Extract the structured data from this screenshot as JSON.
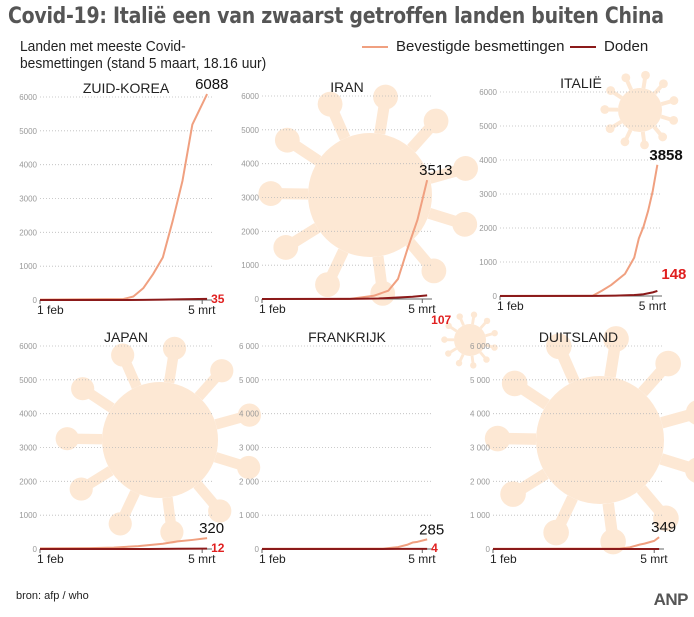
{
  "title": "Covid-19: Italië een van zwaarst getroffen landen buiten China",
  "subtitle_line1": "Landen met meeste Covid-",
  "subtitle_line2": "besmettingen (stand 5 maart, 18.16 uur)",
  "legend": [
    {
      "label": "Bevestigde besmettingen",
      "color": "#f0a080"
    },
    {
      "label": "Doden",
      "color": "#8b1a1a"
    }
  ],
  "source": "bron:  afp / who",
  "logo": "ANP",
  "colors": {
    "confirmed": "#f0a080",
    "deaths": "#8b1a1a",
    "death_label": "#e02020",
    "virus": "#fde8d4"
  },
  "chart_data": [
    {
      "type": "line",
      "title": "ZUID-KOREA",
      "ylim": [
        0,
        6000
      ],
      "yticks": [
        "0",
        "1000",
        "2000",
        "3000",
        "4000",
        "5000",
        "6000"
      ],
      "xticks": [
        {
          "day": 0,
          "label": "1 feb"
        },
        {
          "day": 33,
          "label": "5 mrt"
        }
      ],
      "confirmed_label": "6088",
      "deaths_label": "35",
      "confirmed": [
        [
          0,
          11
        ],
        [
          17,
          30
        ],
        [
          19,
          104
        ],
        [
          21,
          346
        ],
        [
          23,
          763
        ],
        [
          25,
          1261
        ],
        [
          27,
          2337
        ],
        [
          29,
          3526
        ],
        [
          31,
          5186
        ],
        [
          34,
          6088
        ]
      ],
      "deaths": [
        [
          0,
          0
        ],
        [
          21,
          2
        ],
        [
          25,
          12
        ],
        [
          29,
          22
        ],
        [
          34,
          35
        ]
      ]
    },
    {
      "type": "line",
      "title": "IRAN",
      "ylim": [
        0,
        6000
      ],
      "yticks": [
        "0",
        "1000",
        "2000",
        "3000",
        "4000",
        "5000",
        "6000"
      ],
      "xticks": [
        {
          "day": 0,
          "label": "1 feb"
        },
        {
          "day": 33,
          "label": "5 mrt"
        }
      ],
      "confirmed_label": "3513",
      "deaths_label": "107",
      "confirmed": [
        [
          0,
          0
        ],
        [
          18,
          2
        ],
        [
          23,
          95
        ],
        [
          26,
          245
        ],
        [
          28,
          593
        ],
        [
          30,
          1501
        ],
        [
          32,
          2336
        ],
        [
          33,
          2922
        ],
        [
          34,
          3513
        ]
      ],
      "deaths": [
        [
          0,
          0
        ],
        [
          18,
          2
        ],
        [
          24,
          16
        ],
        [
          28,
          43
        ],
        [
          31,
          66
        ],
        [
          34,
          107
        ]
      ]
    },
    {
      "type": "line",
      "title": "ITALIË",
      "ylim": [
        0,
        6000
      ],
      "yticks": [
        "0",
        "1000",
        "2000",
        "3000",
        "4000",
        "5000",
        "6000"
      ],
      "xticks": [
        {
          "day": 0,
          "label": "1 feb"
        },
        {
          "day": 33,
          "label": "5 mrt"
        }
      ],
      "confirmed_label": "3858",
      "deaths_label": "148",
      "confirmed": [
        [
          0,
          2
        ],
        [
          20,
          3
        ],
        [
          22,
          155
        ],
        [
          24,
          322
        ],
        [
          27,
          650
        ],
        [
          29,
          1128
        ],
        [
          30,
          1694
        ],
        [
          31,
          2036
        ],
        [
          32,
          2502
        ],
        [
          33,
          3089
        ],
        [
          34,
          3858
        ]
      ],
      "deaths": [
        [
          0,
          0
        ],
        [
          21,
          2
        ],
        [
          25,
          12
        ],
        [
          29,
          29
        ],
        [
          31,
          52
        ],
        [
          33,
          107
        ],
        [
          34,
          148
        ]
      ]
    },
    {
      "type": "line",
      "title": "JAPAN",
      "ylim": [
        0,
        6000
      ],
      "yticks": [
        "0",
        "1000",
        "2000",
        "3000",
        "4000",
        "5000",
        "6000"
      ],
      "xticks": [
        {
          "day": 0,
          "label": "1 feb"
        },
        {
          "day": 33,
          "label": "5 mrt"
        }
      ],
      "confirmed_label": "320",
      "deaths_label": "12",
      "confirmed": [
        [
          0,
          17
        ],
        [
          10,
          25
        ],
        [
          15,
          41
        ],
        [
          20,
          85
        ],
        [
          25,
          156
        ],
        [
          28,
          224
        ],
        [
          31,
          268
        ],
        [
          34,
          320
        ]
      ],
      "deaths": [
        [
          0,
          0
        ],
        [
          13,
          1
        ],
        [
          22,
          1
        ],
        [
          28,
          6
        ],
        [
          34,
          12
        ]
      ]
    },
    {
      "type": "line",
      "title": "FRANKRIJK",
      "ylim": [
        0,
        6000
      ],
      "yticks": [
        "0",
        "1 000",
        "2 000",
        "3 000",
        "4 000",
        "5 000",
        "6 000"
      ],
      "xticks": [
        {
          "day": 0,
          "label": "1 feb"
        },
        {
          "day": 33,
          "label": "5 mrt"
        }
      ],
      "confirmed_label": "285",
      "deaths_label": "4",
      "confirmed": [
        [
          0,
          6
        ],
        [
          25,
          12
        ],
        [
          28,
          57
        ],
        [
          30,
          130
        ],
        [
          31,
          191
        ],
        [
          32,
          212
        ],
        [
          34,
          285
        ]
      ],
      "deaths": [
        [
          0,
          0
        ],
        [
          14,
          1
        ],
        [
          28,
          2
        ],
        [
          34,
          4
        ]
      ]
    },
    {
      "type": "line",
      "title": "DUITSLAND",
      "ylim": [
        0,
        6000
      ],
      "yticks": [
        "0",
        "1 000",
        "2 000",
        "3 000",
        "4 000",
        "5 000",
        "6 000"
      ],
      "xticks": [
        {
          "day": 0,
          "label": "1 feb"
        },
        {
          "day": 33,
          "label": "5 mrt"
        }
      ],
      "confirmed_label": "349",
      "deaths_label": "",
      "confirmed": [
        [
          0,
          8
        ],
        [
          26,
          16
        ],
        [
          28,
          48
        ],
        [
          30,
          130
        ],
        [
          31,
          159
        ],
        [
          33,
          240
        ],
        [
          34,
          349
        ]
      ],
      "deaths": [
        [
          0,
          0
        ],
        [
          34,
          0
        ]
      ]
    }
  ]
}
